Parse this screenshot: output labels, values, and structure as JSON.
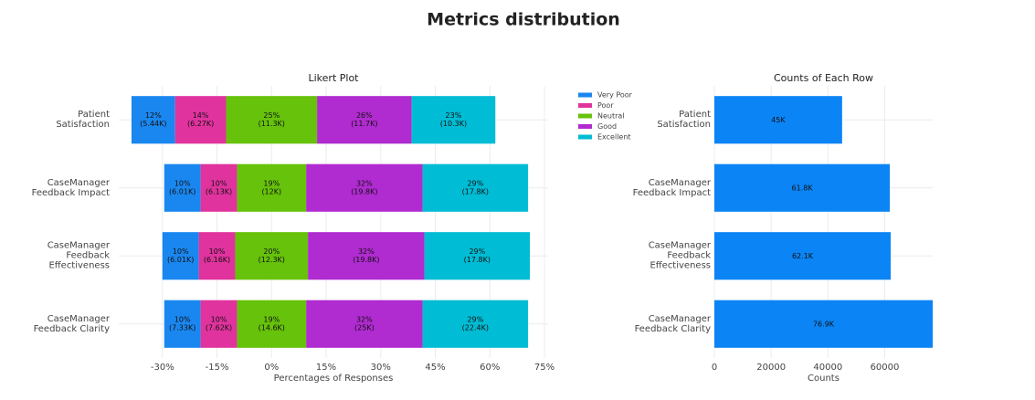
{
  "title": "Metrics distribution",
  "chart_data": [
    {
      "type": "likert",
      "title": "Likert Plot",
      "xlabel": "Percentages of Responses",
      "categories": [
        "Patient Satisfaction",
        "CaseManager Feedback Impact",
        "CaseManager Feedback Effectiveness",
        "CaseManager Feedback Clarity"
      ],
      "series": [
        {
          "name": "Very Poor",
          "color": "#1a87f0",
          "values": [
            12,
            10,
            10,
            10
          ],
          "value_labels": [
            "12%",
            "10%",
            "10%",
            "10%"
          ],
          "count_labels": [
            "(5.44K)",
            "(6.01K)",
            "(6.01K)",
            "(7.33K)"
          ]
        },
        {
          "name": "Poor",
          "color": "#e0339e",
          "values": [
            14,
            10,
            10,
            10
          ],
          "value_labels": [
            "14%",
            "10%",
            "10%",
            "10%"
          ],
          "count_labels": [
            "(6.27K)",
            "(6.13K)",
            "(6.16K)",
            "(7.62K)"
          ]
        },
        {
          "name": "Neutral",
          "color": "#66c20a",
          "values": [
            25,
            19,
            20,
            19
          ],
          "value_labels": [
            "25%",
            "19%",
            "20%",
            "19%"
          ],
          "count_labels": [
            "(11.3K)",
            "(12K)",
            "(12.3K)",
            "(14.6K)"
          ]
        },
        {
          "name": "Good",
          "color": "#b02bd0",
          "values": [
            26,
            32,
            32,
            32
          ],
          "value_labels": [
            "26%",
            "32%",
            "32%",
            "32%"
          ],
          "count_labels": [
            "(11.7K)",
            "(19.8K)",
            "(19.8K)",
            "(25K)"
          ]
        },
        {
          "name": "Excellent",
          "color": "#00bcd4",
          "values": [
            23,
            29,
            29,
            29
          ],
          "value_labels": [
            "23%",
            "29%",
            "29%",
            "29%"
          ],
          "count_labels": [
            "(10.3K)",
            "(17.8K)",
            "(17.8K)",
            "(22.4K)"
          ]
        }
      ],
      "xlim": [
        -42,
        76
      ],
      "xticks": [
        {
          "value": -30,
          "label": "-30%"
        },
        {
          "value": -15,
          "label": "-15%"
        },
        {
          "value": 0,
          "label": "0%"
        },
        {
          "value": 15,
          "label": "15%"
        },
        {
          "value": 30,
          "label": "30%"
        },
        {
          "value": 45,
          "label": "45%"
        },
        {
          "value": 60,
          "label": "60%"
        },
        {
          "value": 75,
          "label": "75%"
        }
      ],
      "grid": true,
      "legend": "right"
    },
    {
      "type": "bar",
      "title": "Counts of Each Row",
      "xlabel": "Counts",
      "categories": [
        "Patient Satisfaction",
        "CaseManager Feedback Impact",
        "CaseManager Feedback Effectiveness",
        "CaseManager Feedback Clarity"
      ],
      "values": [
        45000,
        61800,
        62100,
        76900
      ],
      "value_labels": [
        "45K",
        "61.8K",
        "62.1K",
        "76.9K"
      ],
      "color": "#0b84f5",
      "xlim": [
        0,
        76900
      ],
      "xticks": [
        0,
        20000,
        40000,
        60000
      ],
      "grid": true
    }
  ]
}
